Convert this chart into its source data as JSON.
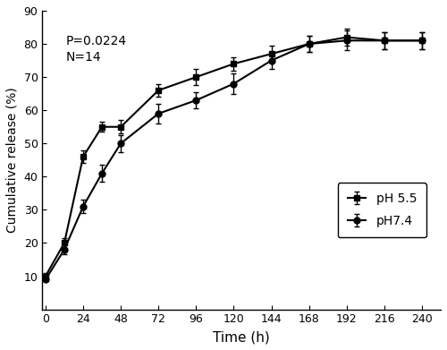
{
  "time_points": [
    0,
    12,
    24,
    36,
    48,
    72,
    96,
    120,
    144,
    168,
    192,
    216,
    240
  ],
  "ph55_values": [
    10,
    20,
    46,
    55,
    55,
    66,
    70,
    74,
    77,
    80,
    82,
    81,
    81
  ],
  "ph74_values": [
    9,
    18,
    31,
    41,
    50,
    59,
    63,
    68,
    75,
    80,
    81,
    81,
    81
  ],
  "ph55_yerr": [
    1.0,
    1.5,
    2.0,
    1.5,
    2.0,
    2.0,
    2.5,
    2.0,
    2.5,
    2.5,
    2.5,
    2.5,
    2.5
  ],
  "ph74_yerr": [
    0.5,
    1.5,
    2.0,
    2.5,
    2.5,
    3.0,
    2.5,
    3.0,
    2.5,
    2.5,
    3.0,
    2.5,
    2.5
  ],
  "xlabel": "Time (h)",
  "ylabel": "Cumulative release (%)",
  "annotation": "P=0.0224\nN=14",
  "legend_ph55": "pH 5.5",
  "legend_ph74": "pH7.4",
  "ylim": [
    0,
    90
  ],
  "xlim": [
    -2,
    252
  ],
  "yticks": [
    10,
    20,
    30,
    40,
    50,
    60,
    70,
    80,
    90
  ],
  "xticks": [
    0,
    24,
    48,
    72,
    96,
    120,
    144,
    168,
    192,
    216,
    240
  ],
  "line_color": "#000000",
  "marker_square": "s",
  "marker_circle": "o",
  "markersize": 5,
  "linewidth": 1.5,
  "capsize": 2.5,
  "elinewidth": 1.0
}
